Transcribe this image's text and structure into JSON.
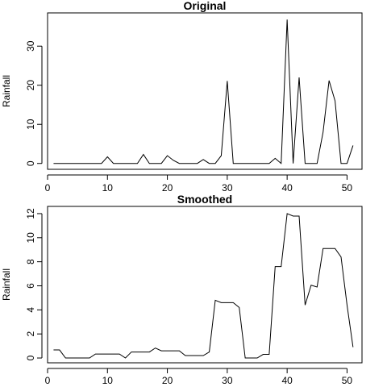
{
  "chart_data": [
    {
      "type": "line",
      "title": "Original",
      "xlabel": "",
      "ylabel": "Rainfall",
      "x": [
        1,
        2,
        3,
        4,
        5,
        6,
        7,
        8,
        9,
        10,
        11,
        12,
        13,
        14,
        15,
        16,
        17,
        18,
        19,
        20,
        21,
        22,
        23,
        24,
        25,
        26,
        27,
        28,
        29,
        30,
        31,
        32,
        33,
        34,
        35,
        36,
        37,
        38,
        39,
        40,
        41,
        42,
        43,
        44,
        45,
        46,
        47,
        48,
        49,
        50,
        51
      ],
      "values": [
        0,
        0,
        0,
        0,
        0,
        0,
        0,
        0,
        0,
        1.7,
        0,
        0,
        0,
        0,
        0,
        2.3,
        0,
        0,
        0,
        2,
        0.8,
        0,
        0,
        0,
        0,
        1,
        0,
        0,
        2,
        21.1,
        0,
        0,
        0,
        0,
        0,
        0,
        0,
        1.3,
        0,
        36.8,
        0,
        22,
        0,
        0,
        0,
        8,
        21.2,
        16,
        0,
        0,
        4.6
      ],
      "xlim": [
        0,
        52.5
      ],
      "ylim": [
        -1.5,
        38.5
      ],
      "xticks": [
        0,
        10,
        20,
        30,
        40,
        50
      ],
      "yticks": [
        0,
        10,
        20,
        30
      ]
    },
    {
      "type": "line",
      "title": "Smoothed",
      "xlabel": "",
      "ylabel": "Rainfall",
      "x": [
        1,
        2,
        3,
        4,
        5,
        6,
        7,
        8,
        9,
        10,
        11,
        12,
        13,
        14,
        15,
        16,
        17,
        18,
        19,
        20,
        21,
        22,
        23,
        24,
        25,
        26,
        27,
        28,
        29,
        30,
        31,
        32,
        33,
        34,
        35,
        36,
        37,
        38,
        39,
        40,
        41,
        42,
        43,
        44,
        45,
        46,
        47,
        48,
        49,
        50,
        51
      ],
      "values": [
        0.67,
        0.67,
        0,
        0,
        0,
        0,
        0,
        0.33,
        0.33,
        0.33,
        0.33,
        0.33,
        0,
        0.5,
        0.5,
        0.5,
        0.5,
        0.83,
        0.6,
        0.6,
        0.6,
        0.6,
        0.2,
        0.2,
        0.2,
        0.2,
        0.5,
        4.8,
        4.6,
        4.6,
        4.6,
        4.2,
        0,
        0,
        0,
        0.3,
        0.3,
        7.6,
        7.6,
        12,
        11.8,
        11.8,
        4.4,
        6.05,
        5.9,
        9.1,
        9.1,
        9.1,
        8.4,
        4.4,
        0.9
      ],
      "xlim": [
        0,
        52.5
      ],
      "ylim": [
        -0.4,
        12.6
      ],
      "xticks": [
        0,
        10,
        20,
        30,
        40,
        50
      ],
      "yticks": [
        0,
        2,
        4,
        6,
        8,
        10,
        12
      ]
    }
  ]
}
